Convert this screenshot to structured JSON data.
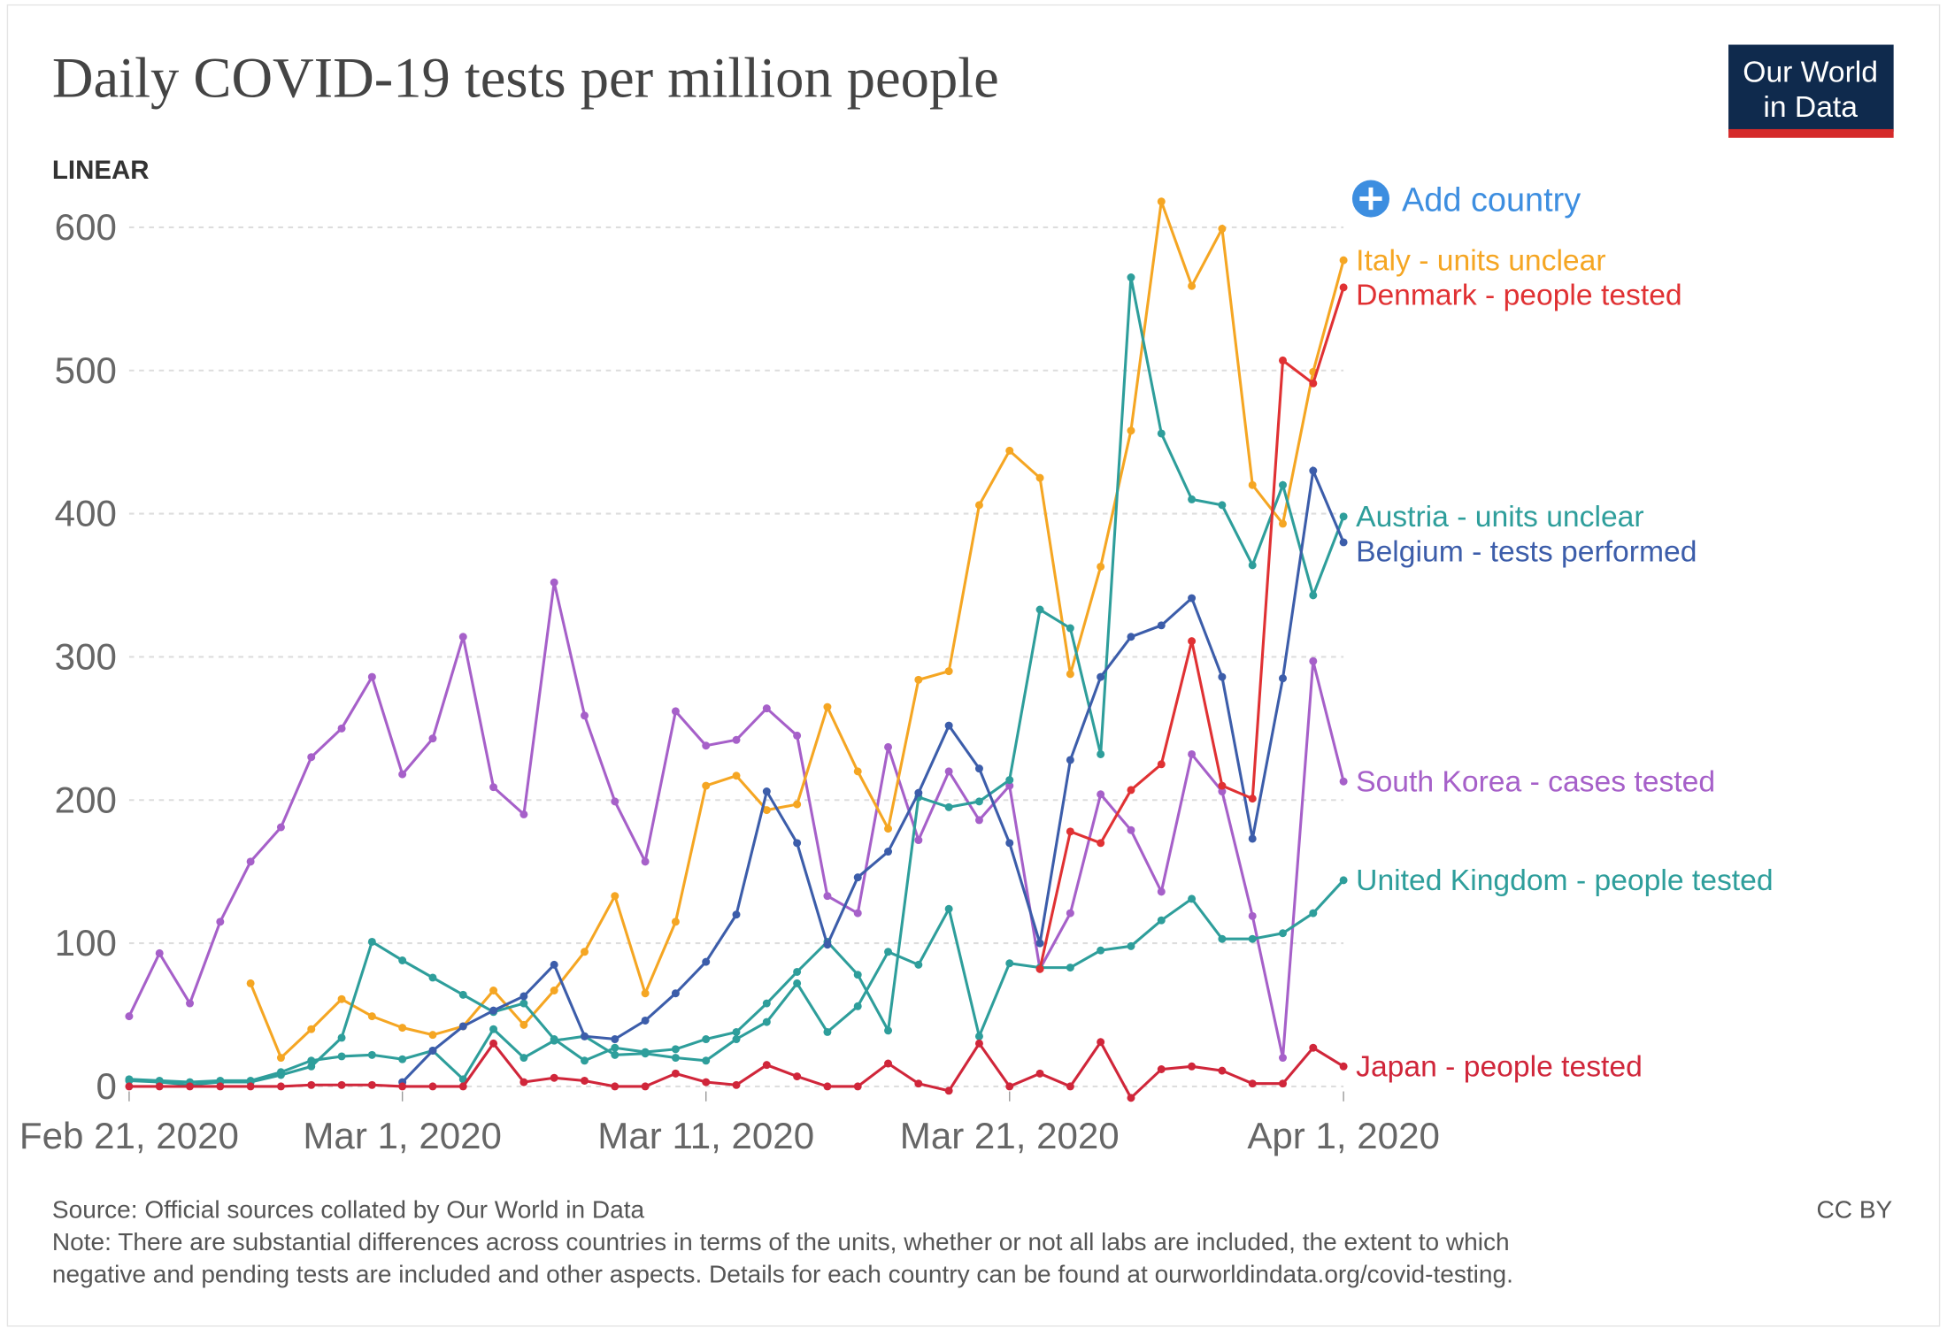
{
  "logo": [
    "Our World",
    "in Data"
  ],
  "scale_toggle": "LINEAR",
  "add_country": "Add country",
  "source": "Source: Official sources collated by Our World in Data",
  "license": "CC BY",
  "note": [
    "Note: There are substantial differences across countries in terms of the units, whether or not all labs are included, the extent to which",
    "negative and pending tests are included and other aspects. Details for each country can be found at ourworldindata.org/covid-testing."
  ],
  "chart_data": {
    "type": "line",
    "title": "Daily COVID-19 tests per million people",
    "x": [
      "2020-02-21",
      "2020-02-22",
      "2020-02-23",
      "2020-02-24",
      "2020-02-25",
      "2020-02-26",
      "2020-02-27",
      "2020-02-28",
      "2020-02-29",
      "2020-03-01",
      "2020-03-02",
      "2020-03-03",
      "2020-03-04",
      "2020-03-05",
      "2020-03-06",
      "2020-03-07",
      "2020-03-08",
      "2020-03-09",
      "2020-03-10",
      "2020-03-11",
      "2020-03-12",
      "2020-03-13",
      "2020-03-14",
      "2020-03-15",
      "2020-03-16",
      "2020-03-17",
      "2020-03-18",
      "2020-03-19",
      "2020-03-20",
      "2020-03-21",
      "2020-03-22",
      "2020-03-23",
      "2020-03-24",
      "2020-03-25",
      "2020-03-26",
      "2020-03-27",
      "2020-03-28",
      "2020-03-29",
      "2020-03-30",
      "2020-03-31",
      "2020-04-01"
    ],
    "xlim": [
      "2020-02-21",
      "2020-04-01"
    ],
    "xticks": [
      {
        "value": "2020-02-21",
        "label": "Feb 21, 2020"
      },
      {
        "value": "2020-03-01",
        "label": "Mar 1, 2020"
      },
      {
        "value": "2020-03-11",
        "label": "Mar 11, 2020"
      },
      {
        "value": "2020-03-21",
        "label": "Mar 21, 2020"
      },
      {
        "value": "2020-04-01",
        "label": "Apr 1, 2020"
      }
    ],
    "ylim": [
      0,
      620
    ],
    "yticks": [
      0,
      100,
      200,
      300,
      400,
      500,
      600
    ],
    "grid": true,
    "series": [
      {
        "name": "South Korea - cases tested",
        "color": "#a660c9",
        "values": [
          49,
          93,
          58,
          115,
          157,
          181,
          230,
          250,
          286,
          218,
          243,
          314,
          209,
          190,
          352,
          259,
          199,
          157,
          262,
          238,
          242,
          264,
          245,
          133,
          121,
          237,
          172,
          220,
          186,
          210,
          82,
          121,
          204,
          179,
          136,
          232,
          206,
          119,
          20,
          297,
          213
        ]
      },
      {
        "name": "Italy - units unclear",
        "color": "#f5a623",
        "values": [
          null,
          null,
          null,
          null,
          72,
          20,
          40,
          61,
          49,
          41,
          36,
          42,
          67,
          43,
          67,
          94,
          133,
          65,
          115,
          210,
          217,
          193,
          197,
          265,
          220,
          180,
          284,
          290,
          406,
          444,
          425,
          288,
          363,
          458,
          618,
          559,
          599,
          420,
          393,
          499,
          577
        ]
      },
      {
        "name": "United Kingdom - people tested",
        "color": "#2e9e9b",
        "values": [
          5,
          4,
          3,
          4,
          4,
          10,
          18,
          21,
          22,
          19,
          25,
          5,
          40,
          20,
          32,
          35,
          22,
          23,
          20,
          18,
          33,
          45,
          72,
          38,
          56,
          94,
          85,
          124,
          35,
          86,
          83,
          83,
          95,
          98,
          116,
          131,
          103,
          103,
          107,
          121,
          144
        ]
      },
      {
        "name": "Austria - units unclear",
        "color": "#2e9e9b",
        "values": [
          4,
          3,
          1,
          3,
          3,
          8,
          14,
          34,
          101,
          88,
          76,
          64,
          52,
          58,
          33,
          18,
          27,
          24,
          26,
          33,
          38,
          58,
          80,
          101,
          78,
          39,
          202,
          195,
          199,
          214,
          333,
          320,
          232,
          565,
          456,
          410,
          406,
          364,
          420,
          343,
          398
        ]
      },
      {
        "name": "Belgium - tests performed",
        "color": "#3c5daa",
        "values": [
          null,
          null,
          null,
          null,
          null,
          null,
          null,
          null,
          null,
          3,
          25,
          42,
          53,
          63,
          85,
          35,
          33,
          46,
          65,
          87,
          120,
          206,
          170,
          99,
          146,
          164,
          205,
          252,
          222,
          170,
          100,
          228,
          286,
          314,
          322,
          341,
          286,
          173,
          285,
          430,
          380
        ]
      },
      {
        "name": "Denmark - people tested",
        "color": "#e03133",
        "values": [
          null,
          null,
          null,
          null,
          null,
          null,
          null,
          null,
          null,
          null,
          null,
          null,
          null,
          null,
          null,
          null,
          null,
          null,
          null,
          null,
          null,
          null,
          null,
          null,
          null,
          null,
          null,
          null,
          null,
          null,
          82,
          178,
          170,
          207,
          225,
          311,
          210,
          201,
          507,
          491,
          558
        ]
      },
      {
        "name": "Japan - people tested",
        "color": "#d0263a",
        "values": [
          0,
          0,
          0,
          0,
          0,
          0,
          1,
          1,
          1,
          0,
          0,
          0,
          30,
          3,
          6,
          4,
          0,
          0,
          9,
          3,
          1,
          15,
          7,
          0,
          0,
          16,
          2,
          -3,
          30,
          0,
          9,
          0,
          31,
          -8,
          12,
          14,
          11,
          2,
          2,
          27,
          14
        ]
      }
    ]
  }
}
